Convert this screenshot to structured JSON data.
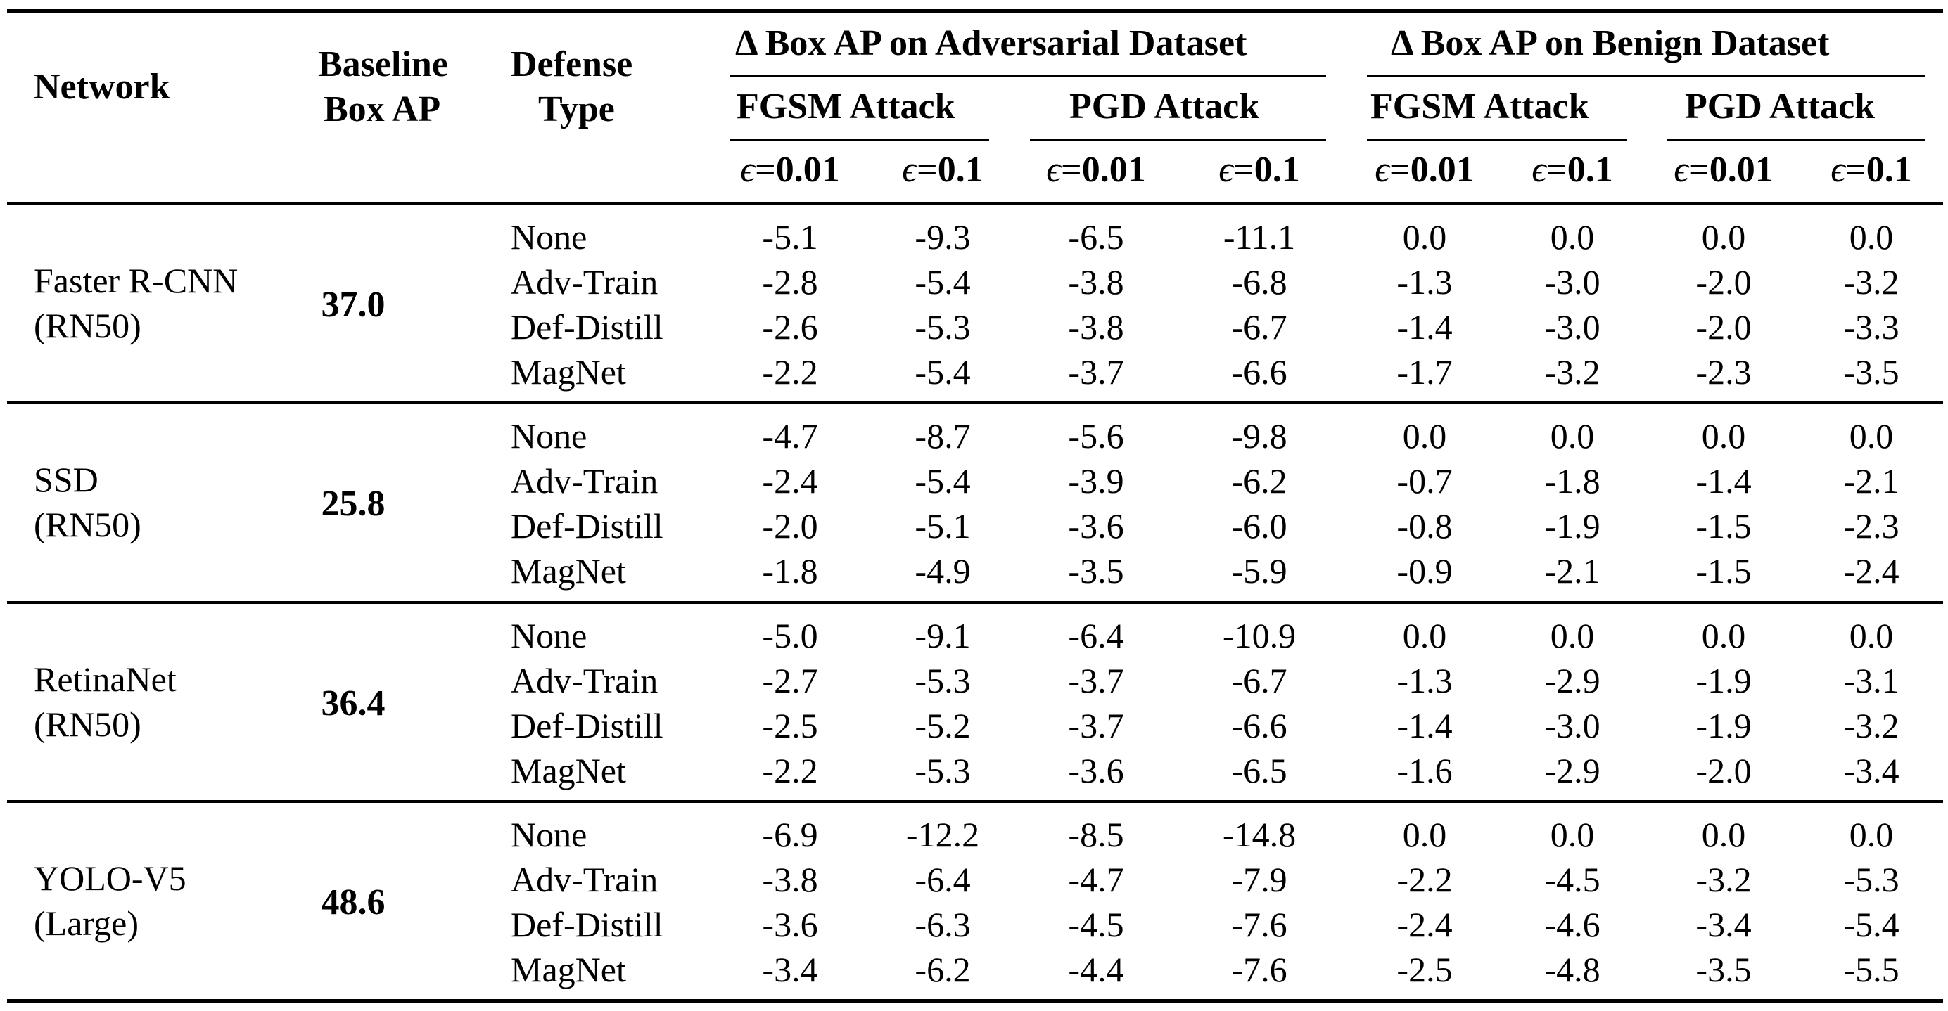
{
  "table": {
    "headers": {
      "network": "Network",
      "baseline_line1": "Baseline",
      "baseline_line2": "Box AP",
      "defense_line1": "Defense",
      "defense_line2": "Type",
      "group_adversarial": "Δ Box AP on Adversarial Dataset",
      "group_benign": "Δ Box AP on Benign Dataset",
      "fgsm": "FGSM Attack",
      "pgd": "PGD Attack",
      "epsilon_symbol": "ϵ",
      "eps_small": "=0.01",
      "eps_large": "=0.1"
    },
    "defense_types": [
      "None",
      "Adv-Train",
      "Def-Distill",
      "MagNet"
    ],
    "column_order": [
      "adv_fgsm_0.01",
      "adv_fgsm_0.1",
      "adv_pgd_0.01",
      "adv_pgd_0.1",
      "ben_fgsm_0.01",
      "ben_fgsm_0.1",
      "ben_pgd_0.01",
      "ben_pgd_0.1"
    ],
    "networks": [
      {
        "name_line1": "Faster R-CNN",
        "name_line2": "(RN50)",
        "baseline": "37.0",
        "rows": [
          [
            "-5.1",
            "-9.3",
            "-6.5",
            "-11.1",
            "0.0",
            "0.0",
            "0.0",
            "0.0"
          ],
          [
            "-2.8",
            "-5.4",
            "-3.8",
            "-6.8",
            "-1.3",
            "-3.0",
            "-2.0",
            "-3.2"
          ],
          [
            "-2.6",
            "-5.3",
            "-3.8",
            "-6.7",
            "-1.4",
            "-3.0",
            "-2.0",
            "-3.3"
          ],
          [
            "-2.2",
            "-5.4",
            "-3.7",
            "-6.6",
            "-1.7",
            "-3.2",
            "-2.3",
            "-3.5"
          ]
        ]
      },
      {
        "name_line1": "SSD",
        "name_line2": "(RN50)",
        "baseline": "25.8",
        "rows": [
          [
            "-4.7",
            "-8.7",
            "-5.6",
            "-9.8",
            "0.0",
            "0.0",
            "0.0",
            "0.0"
          ],
          [
            "-2.4",
            "-5.4",
            "-3.9",
            "-6.2",
            "-0.7",
            "-1.8",
            "-1.4",
            "-2.1"
          ],
          [
            "-2.0",
            "-5.1",
            "-3.6",
            "-6.0",
            "-0.8",
            "-1.9",
            "-1.5",
            "-2.3"
          ],
          [
            "-1.8",
            "-4.9",
            "-3.5",
            "-5.9",
            "-0.9",
            "-2.1",
            "-1.5",
            "-2.4"
          ]
        ]
      },
      {
        "name_line1": "RetinaNet",
        "name_line2": "(RN50)",
        "baseline": "36.4",
        "rows": [
          [
            "-5.0",
            "-9.1",
            "-6.4",
            "-10.9",
            "0.0",
            "0.0",
            "0.0",
            "0.0"
          ],
          [
            "-2.7",
            "-5.3",
            "-3.7",
            "-6.7",
            "-1.3",
            "-2.9",
            "-1.9",
            "-3.1"
          ],
          [
            "-2.5",
            "-5.2",
            "-3.7",
            "-6.6",
            "-1.4",
            "-3.0",
            "-1.9",
            "-3.2"
          ],
          [
            "-2.2",
            "-5.3",
            "-3.6",
            "-6.5",
            "-1.6",
            "-2.9",
            "-2.0",
            "-3.4"
          ]
        ]
      },
      {
        "name_line1": "YOLO-V5",
        "name_line2": "(Large)",
        "baseline": "48.6",
        "rows": [
          [
            "-6.9",
            "-12.2",
            "-8.5",
            "-14.8",
            "0.0",
            "0.0",
            "0.0",
            "0.0"
          ],
          [
            "-3.8",
            "-6.4",
            "-4.7",
            "-7.9",
            "-2.2",
            "-4.5",
            "-3.2",
            "-5.3"
          ],
          [
            "-3.6",
            "-6.3",
            "-4.5",
            "-7.6",
            "-2.4",
            "-4.6",
            "-3.4",
            "-5.4"
          ],
          [
            "-3.4",
            "-6.2",
            "-4.4",
            "-7.6",
            "-2.5",
            "-4.8",
            "-3.5",
            "-5.5"
          ]
        ]
      }
    ]
  }
}
